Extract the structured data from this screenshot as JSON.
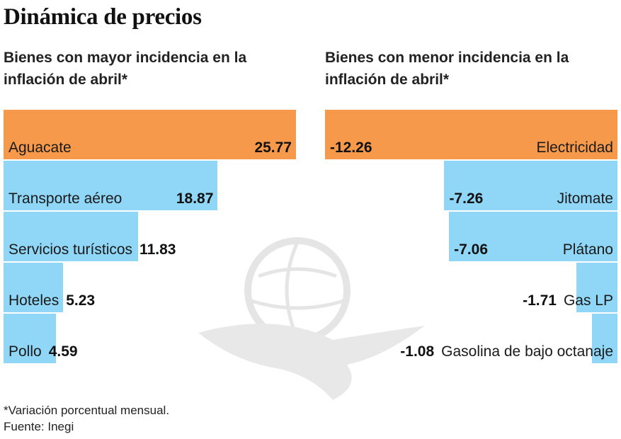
{
  "title": "Dinámica de precios",
  "colors": {
    "highlight": "#f7994a",
    "bar": "#8fd6f7"
  },
  "chart_data": [
    {
      "type": "bar",
      "orientation": "horizontal",
      "title": "Bienes con mayor incidencia en la inflación de abril*",
      "categories": [
        "Aguacate",
        "Transporte aéreo",
        "Servicios turísticos",
        "Hoteles",
        "Pollo"
      ],
      "values": [
        25.77,
        18.87,
        11.83,
        5.23,
        4.59
      ],
      "labels": [
        "25.77",
        "18.87",
        "11.83",
        "5.23",
        "4.59"
      ],
      "highlight_index": 0
    },
    {
      "type": "bar",
      "orientation": "horizontal",
      "title": "Bienes con menor incidencia en la inflación de abril*",
      "categories": [
        "Electricidad",
        "Jitomate",
        "Plátano",
        "Gas LP",
        "Gasolina de bajo octanaje"
      ],
      "values": [
        -12.26,
        -7.26,
        -7.06,
        -1.71,
        -1.08
      ],
      "labels": [
        "-12.26",
        "-7.26",
        "-7.06",
        "-1.71",
        "-1.08"
      ],
      "highlight_index": 0
    }
  ],
  "footnote": "*Variación porcentual mensual.",
  "source": "Fuente: Inegi",
  "watermark": "eagle-globe-logo"
}
